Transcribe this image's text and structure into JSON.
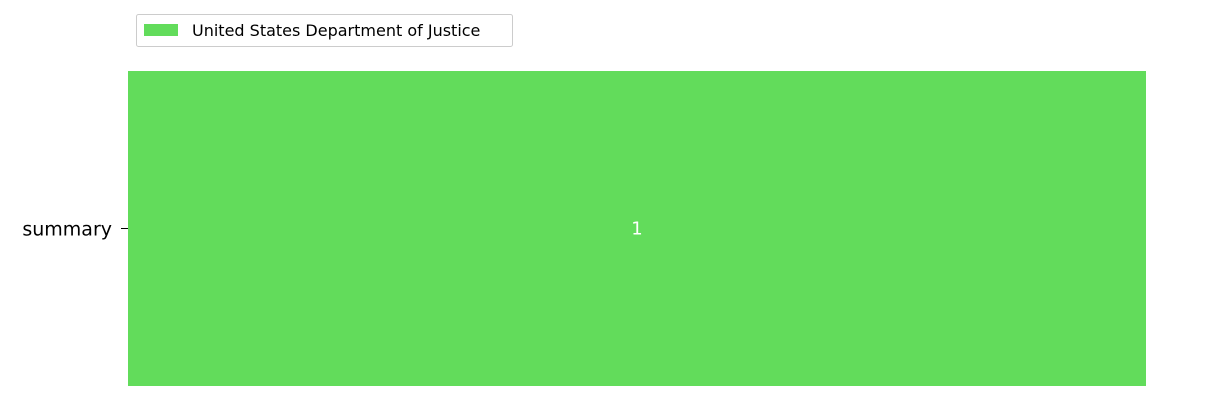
{
  "chart_data": {
    "type": "bar",
    "orientation": "horizontal",
    "stacked": true,
    "categories": [
      "summary"
    ],
    "series": [
      {
        "name": "United States Department of Justice",
        "values": [
          1
        ],
        "color": "#62dc5b",
        "data_label_color": "#ffffff"
      }
    ],
    "xlim": [
      0,
      1
    ],
    "legend_placement": "top-left",
    "grid": false,
    "x_axis_visible": false
  }
}
